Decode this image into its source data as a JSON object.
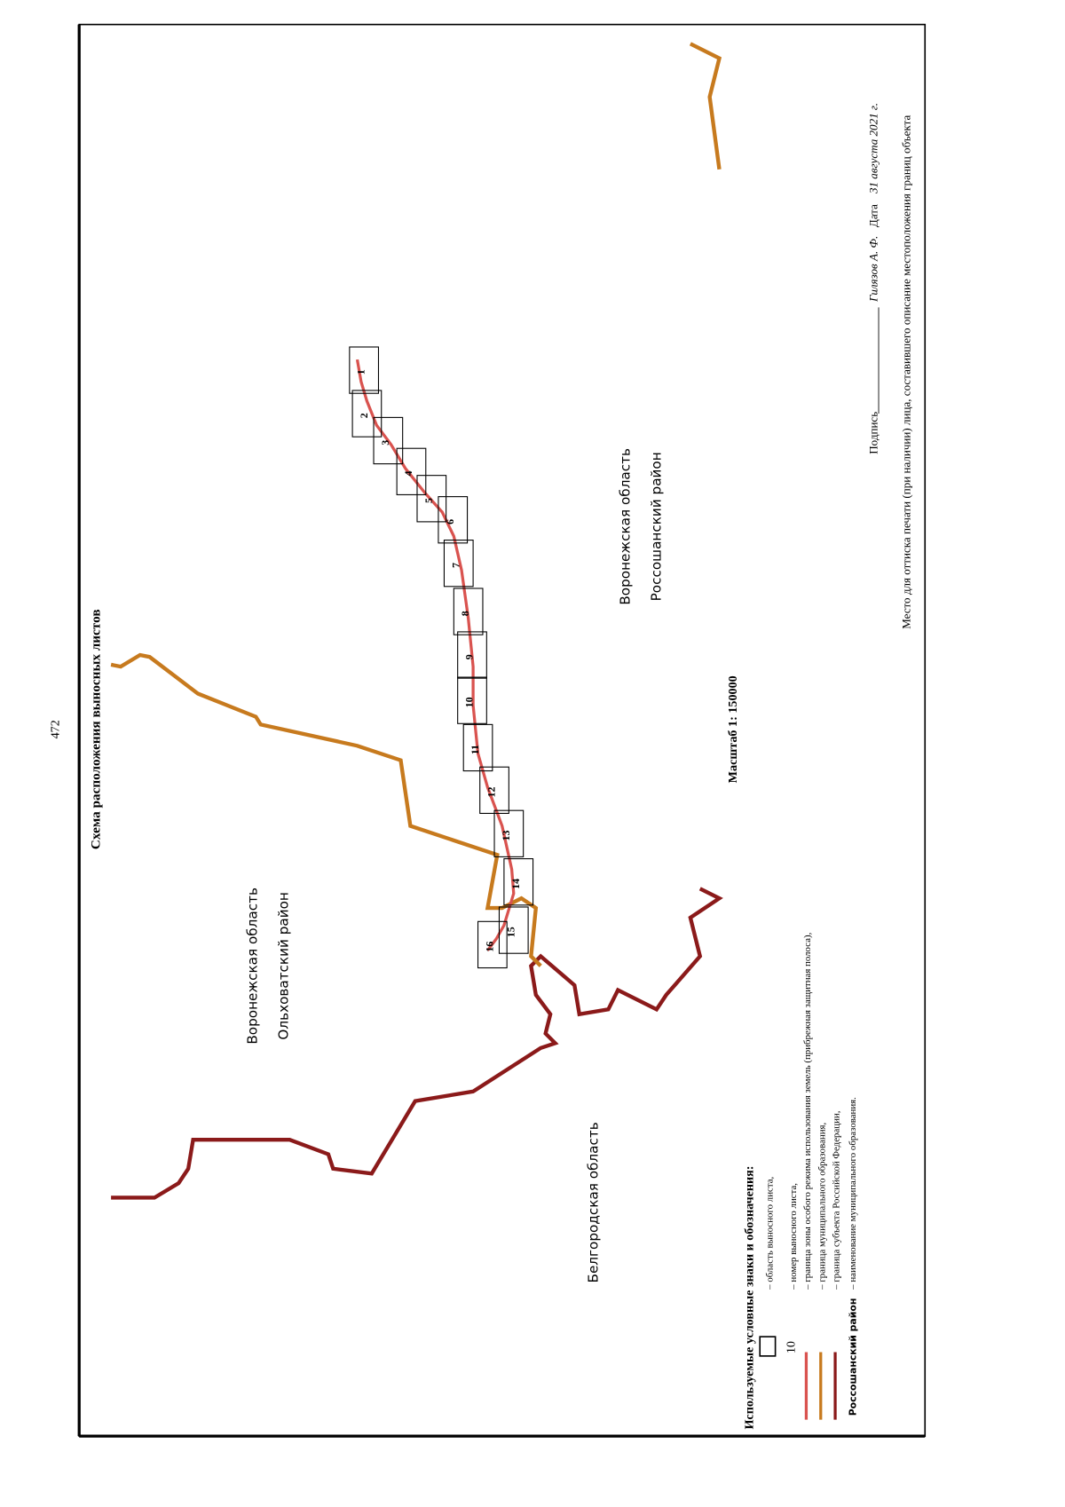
{
  "page_number": "472",
  "title": "Схема расположения выносных листов",
  "regions": [
    {
      "lines": [
        "Воронежская область",
        "Ольховатский район"
      ]
    },
    {
      "lines": [
        "Белгородская область"
      ]
    },
    {
      "lines": [
        "Воронежская область",
        "Россошанский район"
      ]
    }
  ],
  "scale": "Масштаб 1: 150000",
  "sheets": [
    "1",
    "2",
    "3",
    "4",
    "5",
    "6",
    "7",
    "8",
    "9",
    "10",
    "11",
    "12",
    "13",
    "14",
    "15",
    "16"
  ],
  "legend": {
    "title": "Используемые условные знаки и обозначения:",
    "sample_number": "10",
    "sample_region": "Россошанский район",
    "items": [
      "– область выносного листа,",
      "– номер выносного листа,",
      "– граница зоны особого режима использования земель (прибрежная защитная полоса),",
      "– граница муниципального образования,",
      "– граница субъекта Российской Федерации,",
      "– наименование муниципального образования."
    ]
  },
  "signature": {
    "label": "Подпись",
    "name": "Гилязов А. Ф.",
    "date_label": "Дата",
    "date": "31 августа 2021 г."
  },
  "stamp_note": "Место для оттиска печати (при наличии) лица, составившего описание местоположения границ объекта"
}
